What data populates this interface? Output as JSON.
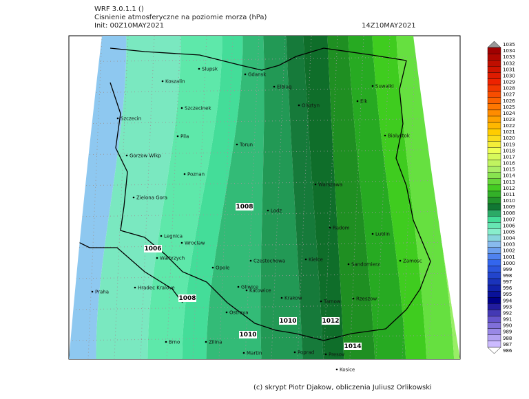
{
  "header": {
    "model": "WRF 3.0.1.1 ()",
    "title": "Cisnienie atmosferyczne na poziomie morza (hPa)",
    "init": "Init: 00Z10MAY2021",
    "valid": "14Z10MAY2021"
  },
  "map": {
    "cities": [
      "Slupsk",
      "Koszalin",
      "Gdansk",
      "Elblag",
      "Suwalki",
      "Szczecinek",
      "Olsztyn",
      "Elk",
      "Szczecin",
      "Pila",
      "Torun",
      "Bialystok",
      "Gorzow Wlkp",
      "Poznan",
      "Warszawa",
      "Zielona Gora",
      "Lodz",
      "Radom",
      "Lublin",
      "Legnica",
      "Wroclaw",
      "Walbrzych",
      "Opole",
      "Czestochowa",
      "Kielce",
      "Sandomierz",
      "Zamosc",
      "Praha",
      "Hradec Kralove",
      "Gliwice",
      "Katowice",
      "Krakow",
      "Tarnow",
      "Rzeszow",
      "Ostrava",
      "Brno",
      "Zilina",
      "Martin",
      "Poprad",
      "Presov",
      "Kosice"
    ],
    "contour_labels": [
      1008,
      1006,
      1008,
      1010,
      1010,
      1012,
      1014
    ]
  },
  "colorbar": {
    "levels": [
      1035,
      1034,
      1033,
      1032,
      1031,
      1030,
      1029,
      1028,
      1027,
      1026,
      1025,
      1024,
      1023,
      1022,
      1021,
      1020,
      1019,
      1018,
      1017,
      1016,
      1015,
      1014,
      1013,
      1012,
      1011,
      1010,
      1009,
      1008,
      1007,
      1006,
      1005,
      1004,
      1003,
      1002,
      1001,
      1000,
      999,
      998,
      997,
      996,
      995,
      994,
      993,
      992,
      991,
      990,
      989,
      988,
      987,
      986
    ]
  },
  "footer": {
    "credit": "(c) skrypt Piotr Djakow, obliczenia Juliusz Orlikowski"
  }
}
